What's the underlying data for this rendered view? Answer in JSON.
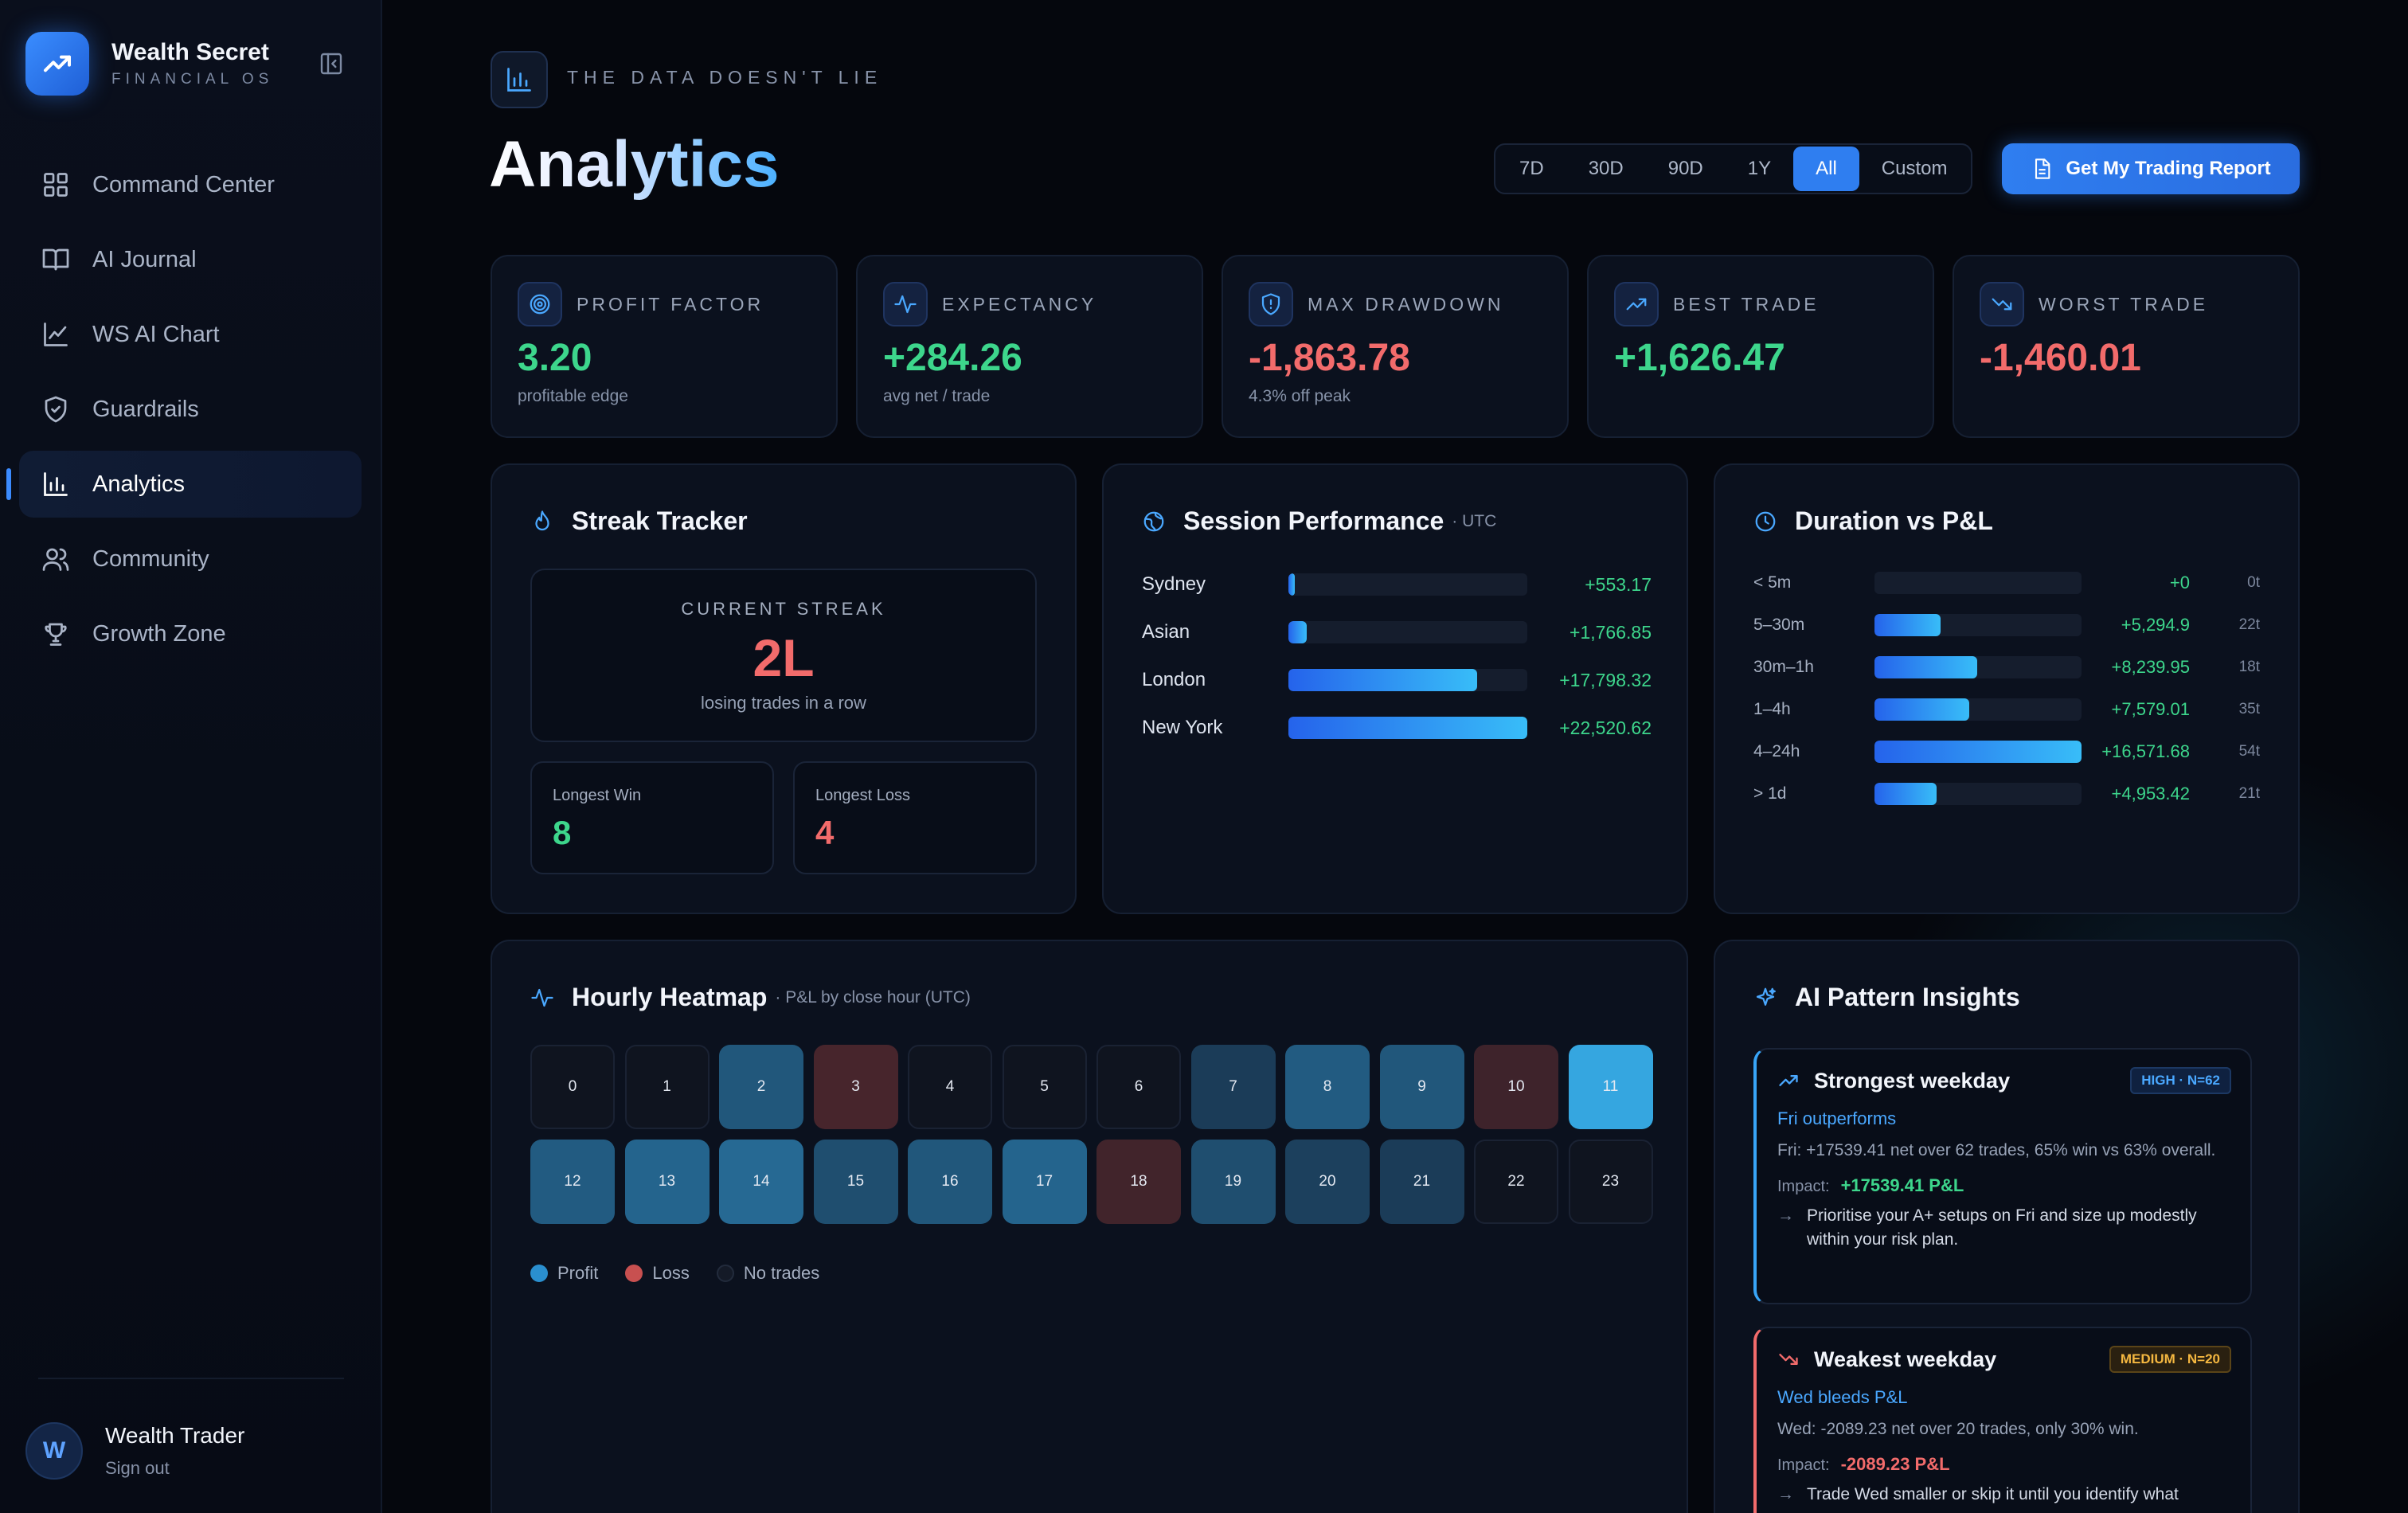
{
  "brand": {
    "name": "Wealth Secret",
    "sub": "FINANCIAL OS"
  },
  "nav": [
    {
      "label": "Command Center",
      "icon": "grid-icon"
    },
    {
      "label": "AI Journal",
      "icon": "book-icon"
    },
    {
      "label": "WS AI Chart",
      "icon": "line-chart-icon"
    },
    {
      "label": "Guardrails",
      "icon": "shield-icon"
    },
    {
      "label": "Analytics",
      "icon": "bar-chart-icon",
      "active": true
    },
    {
      "label": "Community",
      "icon": "users-icon"
    },
    {
      "label": "Growth Zone",
      "icon": "trophy-icon"
    }
  ],
  "user": {
    "initial": "W",
    "name": "Wealth Trader",
    "sign_out": "Sign out"
  },
  "header": {
    "eyebrow": "THE DATA DOESN'T LIE",
    "title": "Analytics",
    "ranges": [
      "7D",
      "30D",
      "90D",
      "1Y",
      "All",
      "Custom"
    ],
    "active_range": "All",
    "report_button": "Get My Trading Report"
  },
  "stats": [
    {
      "label": "PROFIT FACTOR",
      "value": "3.20",
      "sub": "profitable edge",
      "tone": "pos",
      "icon": "target-icon"
    },
    {
      "label": "EXPECTANCY",
      "value": "+284.26",
      "sub": "avg net / trade",
      "tone": "pos",
      "icon": "pulse-icon"
    },
    {
      "label": "MAX DRAWDOWN",
      "value": "-1,863.78",
      "sub": "4.3% off peak",
      "tone": "neg",
      "icon": "shield-icon"
    },
    {
      "label": "BEST TRADE",
      "value": "+1,626.47",
      "sub": "",
      "tone": "pos",
      "icon": "trend-up-icon"
    },
    {
      "label": "WORST TRADE",
      "value": "-1,460.01",
      "sub": "",
      "tone": "neg",
      "icon": "trend-down-icon"
    }
  ],
  "streak": {
    "title": "Streak Tracker",
    "current_label": "CURRENT STREAK",
    "current_value": "2L",
    "current_sub": "losing trades in a row",
    "longest_win_label": "Longest Win",
    "longest_win": "8",
    "longest_loss_label": "Longest Loss",
    "longest_loss": "4"
  },
  "session": {
    "title": "Session Performance",
    "sub": "· UTC",
    "rows": [
      {
        "label": "Sydney",
        "value": "+553.17",
        "fill": 0.025
      },
      {
        "label": "Asian",
        "value": "+1,766.85",
        "fill": 0.078
      },
      {
        "label": "London",
        "value": "+17,798.32",
        "fill": 0.79
      },
      {
        "label": "New York",
        "value": "+22,520.62",
        "fill": 1.0
      }
    ]
  },
  "duration": {
    "title": "Duration vs P&L",
    "rows": [
      {
        "label": "< 5m",
        "value": "+0",
        "count": "0t",
        "fill": 0
      },
      {
        "label": "5–30m",
        "value": "+5,294.9",
        "count": "22t",
        "fill": 0.32
      },
      {
        "label": "30m–1h",
        "value": "+8,239.95",
        "count": "18t",
        "fill": 0.497
      },
      {
        "label": "1–4h",
        "value": "+7,579.01",
        "count": "35t",
        "fill": 0.457
      },
      {
        "label": "4–24h",
        "value": "+16,571.68",
        "count": "54t",
        "fill": 1.0
      },
      {
        "label": "> 1d",
        "value": "+4,953.42",
        "count": "21t",
        "fill": 0.299
      }
    ]
  },
  "heatmap": {
    "title": "Hourly Heatmap",
    "sub": "· P&L by close hour (UTC)",
    "cells": [
      {
        "hour": "0",
        "state": "none",
        "level": 0
      },
      {
        "hour": "1",
        "state": "none",
        "level": 0
      },
      {
        "hour": "2",
        "state": "profit",
        "level": 0.55
      },
      {
        "hour": "3",
        "state": "loss",
        "level": 0.5
      },
      {
        "hour": "4",
        "state": "none",
        "level": 0
      },
      {
        "hour": "5",
        "state": "none",
        "level": 0
      },
      {
        "hour": "6",
        "state": "none",
        "level": 0
      },
      {
        "hour": "7",
        "state": "profit",
        "level": 0.25
      },
      {
        "hour": "8",
        "state": "profit",
        "level": 0.6
      },
      {
        "hour": "9",
        "state": "profit",
        "level": 0.55
      },
      {
        "hour": "10",
        "state": "loss",
        "level": 0.35
      },
      {
        "hour": "11",
        "state": "profit",
        "level": 1.0
      },
      {
        "hour": "12",
        "state": "profit",
        "level": 0.6
      },
      {
        "hour": "13",
        "state": "profit",
        "level": 0.7
      },
      {
        "hour": "14",
        "state": "profit",
        "level": 0.75
      },
      {
        "hour": "15",
        "state": "profit",
        "level": 0.45
      },
      {
        "hour": "16",
        "state": "profit",
        "level": 0.55
      },
      {
        "hour": "17",
        "state": "profit",
        "level": 0.7
      },
      {
        "hour": "18",
        "state": "loss",
        "level": 0.4
      },
      {
        "hour": "19",
        "state": "profit",
        "level": 0.45
      },
      {
        "hour": "20",
        "state": "profit",
        "level": 0.3
      },
      {
        "hour": "21",
        "state": "profit",
        "level": 0.25
      },
      {
        "hour": "22",
        "state": "none",
        "level": 0
      },
      {
        "hour": "23",
        "state": "none",
        "level": 0
      }
    ],
    "legend": [
      "Profit",
      "Loss",
      "No trades"
    ]
  },
  "insights": {
    "title": "AI Pattern Insights",
    "items": [
      {
        "tone": "blue",
        "title": "Strongest weekday",
        "badge": "HIGH · N=62",
        "badge_level": "high",
        "sub": "Fri outperforms",
        "text": "Fri: +17539.41 net over 62 trades, 65% win vs 63% overall.",
        "impact_label": "Impact:",
        "impact_value": "+17539.41 P&L",
        "action": "Prioritise your A+ setups on Fri and size up modestly within your risk plan."
      },
      {
        "tone": "red",
        "title": "Weakest weekday",
        "badge": "MEDIUM · N=20",
        "badge_level": "medium",
        "sub": "Wed bleeds P&L",
        "text": "Wed: -2089.23 net over 20 trades, only 30% win.",
        "impact_label": "Impact:",
        "impact_value": "-2089.23 P&L",
        "action": "Trade Wed smaller or skip it until you identify what"
      }
    ]
  },
  "colors": {
    "accent": "#2f7ef0",
    "positive": "#3dd68c",
    "negative": "#f26b6b",
    "background": "#05070d"
  }
}
